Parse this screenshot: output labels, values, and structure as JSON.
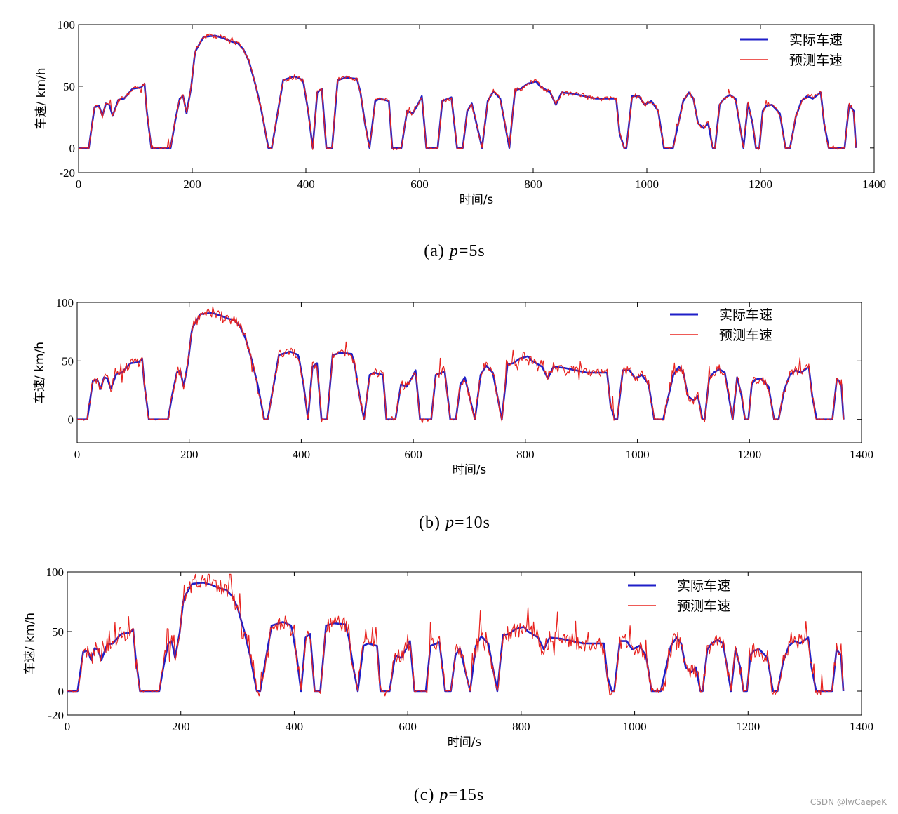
{
  "chart_data": [
    {
      "type": "line",
      "panel": "a",
      "caption_prefix": "(a) ",
      "caption_var": "p",
      "caption_suffix": "=5s",
      "xlabel": "时间/s",
      "ylabel": "车速/ km/h",
      "xlim": [
        0,
        1400
      ],
      "ylim": [
        -20,
        100
      ],
      "xticks": [
        0,
        200,
        400,
        600,
        800,
        1000,
        1200,
        1400
      ],
      "yticks": [
        -20,
        0,
        50,
        100
      ],
      "legend_position": "top-right",
      "noise": 4,
      "series": [
        {
          "name": "实际车速",
          "color": "#1f1fc8"
        },
        {
          "name": "预测车速",
          "color": "#e8231f"
        }
      ]
    },
    {
      "type": "line",
      "panel": "b",
      "caption_prefix": "(b) ",
      "caption_var": "p",
      "caption_suffix": "=10s",
      "xlabel": "时间/s",
      "ylabel": "车速/ km/h",
      "xlim": [
        0,
        1400
      ],
      "ylim": [
        -20,
        100
      ],
      "xticks": [
        0,
        200,
        400,
        600,
        800,
        1000,
        1200,
        1400
      ],
      "yticks": [
        0,
        50,
        100
      ],
      "legend_position": "top-right",
      "noise": 8,
      "series": [
        {
          "name": "实际车速",
          "color": "#1f1fc8"
        },
        {
          "name": "预测车速",
          "color": "#e8231f"
        }
      ]
    },
    {
      "type": "line",
      "panel": "c",
      "caption_prefix": "(c) ",
      "caption_var": "p",
      "caption_suffix": "=15s",
      "xlabel": "时间/s",
      "ylabel": "车速/ km/h",
      "xlim": [
        0,
        1400
      ],
      "ylim": [
        -20,
        100
      ],
      "xticks": [
        0,
        200,
        400,
        600,
        800,
        1000,
        1200,
        1400
      ],
      "yticks": [
        -20,
        0,
        50,
        100
      ],
      "legend_position": "top-right",
      "noise": 13,
      "series": [
        {
          "name": "实际车速",
          "color": "#1f1fc8"
        },
        {
          "name": "预测车速",
          "color": "#e8231f"
        }
      ]
    }
  ],
  "speed_profile": {
    "x": [
      0,
      18,
      28,
      36,
      42,
      48,
      54,
      60,
      70,
      80,
      95,
      110,
      116,
      120,
      128,
      162,
      170,
      178,
      184,
      190,
      198,
      205,
      220,
      240,
      255,
      270,
      280,
      290,
      300,
      312,
      322,
      334,
      340,
      360,
      380,
      395,
      404,
      412,
      420,
      428,
      436,
      446,
      456,
      470,
      490,
      496,
      504,
      512,
      522,
      530,
      546,
      552,
      568,
      578,
      588,
      598,
      604,
      612,
      632,
      640,
      656,
      666,
      676,
      684,
      692,
      700,
      710,
      720,
      730,
      742,
      750,
      758,
      768,
      778,
      790,
      805,
      812,
      830,
      840,
      850,
      870,
      890,
      910,
      946,
      952,
      960,
      964,
      974,
      986,
      996,
      1008,
      1020,
      1030,
      1038,
      1046,
      1064,
      1074,
      1082,
      1090,
      1100,
      1108,
      1116,
      1120,
      1128,
      1136,
      1146,
      1156,
      1170,
      1178,
      1186,
      1192,
      1198,
      1204,
      1210,
      1220,
      1234,
      1244,
      1252,
      1262,
      1272,
      1282,
      1292,
      1306,
      1312,
      1320,
      1348,
      1356,
      1364,
      1368
    ],
    "y": [
      0,
      0,
      33,
      34,
      26,
      36,
      35,
      26,
      39,
      40,
      48,
      49,
      52,
      30,
      0,
      0,
      22,
      40,
      42,
      28,
      49,
      78,
      90,
      91,
      89,
      86,
      85,
      80,
      70,
      50,
      30,
      0,
      0,
      55,
      58,
      55,
      30,
      0,
      45,
      48,
      0,
      0,
      55,
      57,
      56,
      45,
      20,
      0,
      38,
      40,
      38,
      0,
      0,
      30,
      28,
      36,
      42,
      0,
      0,
      38,
      41,
      0,
      0,
      30,
      36,
      20,
      0,
      38,
      46,
      40,
      20,
      0,
      47,
      48,
      52,
      54,
      50,
      45,
      35,
      45,
      44,
      42,
      40,
      40,
      12,
      0,
      0,
      42,
      42,
      35,
      38,
      30,
      0,
      0,
      0,
      38,
      45,
      40,
      20,
      16,
      20,
      0,
      0,
      35,
      40,
      43,
      40,
      0,
      36,
      20,
      0,
      0,
      30,
      34,
      35,
      28,
      0,
      0,
      25,
      38,
      42,
      40,
      45,
      20,
      0,
      0,
      35,
      30,
      0
    ]
  },
  "credit": "CSDN @lwCaepeK"
}
